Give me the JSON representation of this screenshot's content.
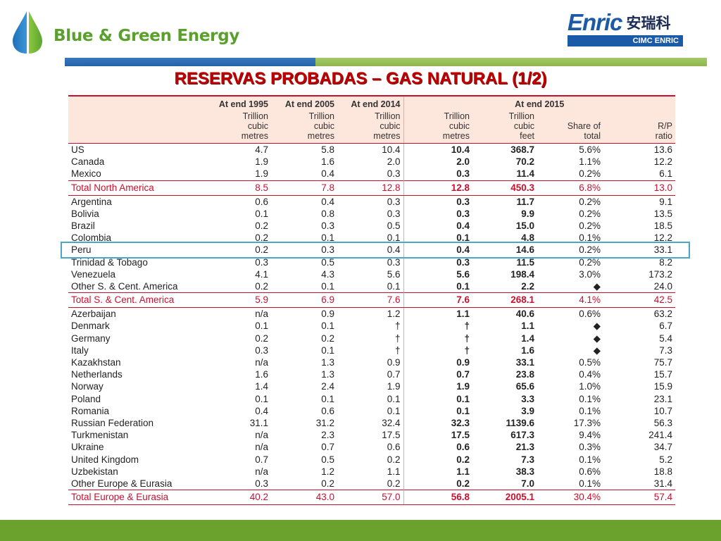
{
  "brand": {
    "title": "Blue & Green Energy"
  },
  "enric": {
    "word": "Enric",
    "cn": "安瑞科",
    "bar": "CIMC ENRIC"
  },
  "slide": {
    "title": "RESERVAS PROBADAS – GAS NATURAL (1/2)"
  },
  "colors": {
    "brand_green": "#5aa02c",
    "title_red": "#c00000",
    "table_red": "#c8102e",
    "highlight": "#4aa7c8"
  },
  "table": {
    "group_headers": [
      "At end 1995",
      "At end 2005",
      "At end 2014",
      "At end 2015"
    ],
    "sub_headers": [
      "Trillion\ncubic\nmetres",
      "Trillion\ncubic\nmetres",
      "Trillion\ncubic\nmetres",
      "Trillion\ncubic\nmetres",
      "Trillion\ncubic\nfeet",
      "Share of\ntotal",
      "R/P\nratio"
    ],
    "rows": [
      {
        "c": [
          "US",
          "4.7",
          "5.8",
          "10.4",
          "10.4",
          "368.7",
          "5.6%",
          "13.6"
        ]
      },
      {
        "c": [
          "Canada",
          "1.9",
          "1.6",
          "2.0",
          "2.0",
          "70.2",
          "1.1%",
          "12.2"
        ]
      },
      {
        "c": [
          "Mexico",
          "1.9",
          "0.4",
          "0.3",
          "0.3",
          "11.4",
          "0.2%",
          "6.1"
        ]
      },
      {
        "total": true,
        "c": [
          "Total North America",
          "8.5",
          "7.8",
          "12.8",
          "12.8",
          "450.3",
          "6.8%",
          "13.0"
        ]
      },
      {
        "c": [
          "Argentina",
          "0.6",
          "0.4",
          "0.3",
          "0.3",
          "11.7",
          "0.2%",
          "9.1"
        ]
      },
      {
        "c": [
          "Bolivia",
          "0.1",
          "0.8",
          "0.3",
          "0.3",
          "9.9",
          "0.2%",
          "13.5"
        ]
      },
      {
        "c": [
          "Brazil",
          "0.2",
          "0.3",
          "0.5",
          "0.4",
          "15.0",
          "0.2%",
          "18.5"
        ]
      },
      {
        "c": [
          "Colombia",
          "0.2",
          "0.1",
          "0.1",
          "0.1",
          "4.8",
          "0.1%",
          "12.2"
        ]
      },
      {
        "c": [
          "Peru",
          "0.2",
          "0.3",
          "0.4",
          "0.4",
          "14.6",
          "0.2%",
          "33.1"
        ]
      },
      {
        "c": [
          "Trinidad & Tobago",
          "0.3",
          "0.5",
          "0.3",
          "0.3",
          "11.5",
          "0.2%",
          "8.2"
        ]
      },
      {
        "c": [
          "Venezuela",
          "4.1",
          "4.3",
          "5.6",
          "5.6",
          "198.4",
          "3.0%",
          "173.2"
        ]
      },
      {
        "c": [
          "Other S. & Cent. America",
          "0.2",
          "0.1",
          "0.1",
          "0.1",
          "2.2",
          "◆",
          "24.0"
        ]
      },
      {
        "total": true,
        "c": [
          "Total S. & Cent. America",
          "5.9",
          "6.9",
          "7.6",
          "7.6",
          "268.1",
          "4.1%",
          "42.5"
        ]
      },
      {
        "c": [
          "Azerbaijan",
          "n/a",
          "0.9",
          "1.2",
          "1.1",
          "40.6",
          "0.6%",
          "63.2"
        ]
      },
      {
        "c": [
          "Denmark",
          "0.1",
          "0.1",
          "†",
          "†",
          "1.1",
          "◆",
          "6.7"
        ]
      },
      {
        "c": [
          "Germany",
          "0.2",
          "0.2",
          "†",
          "†",
          "1.4",
          "◆",
          "5.4"
        ]
      },
      {
        "c": [
          "Italy",
          "0.3",
          "0.1",
          "†",
          "†",
          "1.6",
          "◆",
          "7.3"
        ]
      },
      {
        "c": [
          "Kazakhstan",
          "n/a",
          "1.3",
          "0.9",
          "0.9",
          "33.1",
          "0.5%",
          "75.7"
        ]
      },
      {
        "c": [
          "Netherlands",
          "1.6",
          "1.3",
          "0.7",
          "0.7",
          "23.8",
          "0.4%",
          "15.7"
        ]
      },
      {
        "c": [
          "Norway",
          "1.4",
          "2.4",
          "1.9",
          "1.9",
          "65.6",
          "1.0%",
          "15.9"
        ]
      },
      {
        "c": [
          "Poland",
          "0.1",
          "0.1",
          "0.1",
          "0.1",
          "3.3",
          "0.1%",
          "23.1"
        ]
      },
      {
        "c": [
          "Romania",
          "0.4",
          "0.6",
          "0.1",
          "0.1",
          "3.9",
          "0.1%",
          "10.7"
        ]
      },
      {
        "c": [
          "Russian Federation",
          "31.1",
          "31.2",
          "32.4",
          "32.3",
          "1139.6",
          "17.3%",
          "56.3"
        ]
      },
      {
        "c": [
          "Turkmenistan",
          "n/a",
          "2.3",
          "17.5",
          "17.5",
          "617.3",
          "9.4%",
          "241.4"
        ]
      },
      {
        "c": [
          "Ukraine",
          "n/a",
          "0.7",
          "0.6",
          "0.6",
          "21.3",
          "0.3%",
          "34.7"
        ]
      },
      {
        "c": [
          "United Kingdom",
          "0.7",
          "0.5",
          "0.2",
          "0.2",
          "7.3",
          "0.1%",
          "5.2"
        ]
      },
      {
        "c": [
          "Uzbekistan",
          "n/a",
          "1.2",
          "1.1",
          "1.1",
          "38.3",
          "0.6%",
          "18.8"
        ]
      },
      {
        "c": [
          "Other Europe & Eurasia",
          "0.3",
          "0.2",
          "0.2",
          "0.2",
          "7.0",
          "0.1%",
          "31.4"
        ]
      },
      {
        "total": true,
        "c": [
          "Total Europe & Eurasia",
          "40.2",
          "43.0",
          "57.0",
          "56.8",
          "2005.1",
          "30.4%",
          "57.4"
        ]
      }
    ],
    "highlighted_row": "Peru"
  }
}
